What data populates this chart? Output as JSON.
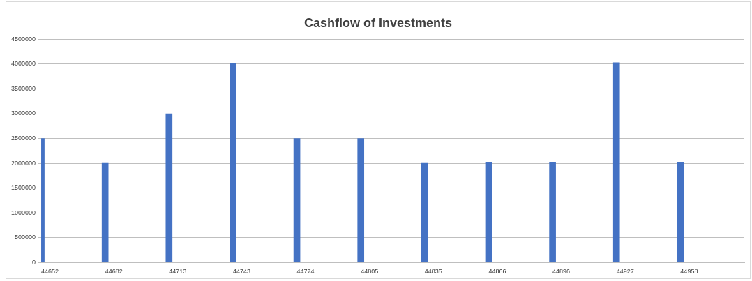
{
  "chart_data": {
    "type": "bar",
    "title": "Cashflow of Investments",
    "categories": [
      "44652",
      "44682",
      "44713",
      "44743",
      "44774",
      "44805",
      "44835",
      "44866",
      "44896",
      "44927",
      "44958",
      null
    ],
    "series": [
      {
        "color": "#4472c4",
        "values": [
          2500000,
          2000000,
          3000000,
          4020000,
          2500000,
          2500000,
          2000000,
          2010000,
          2010000,
          4030000,
          2020000,
          null
        ]
      }
    ],
    "ylim": [
      0,
      4500000
    ],
    "yticks": [
      0,
      500000,
      1000000,
      1500000,
      2000000,
      2500000,
      3000000,
      3500000,
      4000000,
      4500000
    ],
    "grid": "y",
    "legend": false
  }
}
